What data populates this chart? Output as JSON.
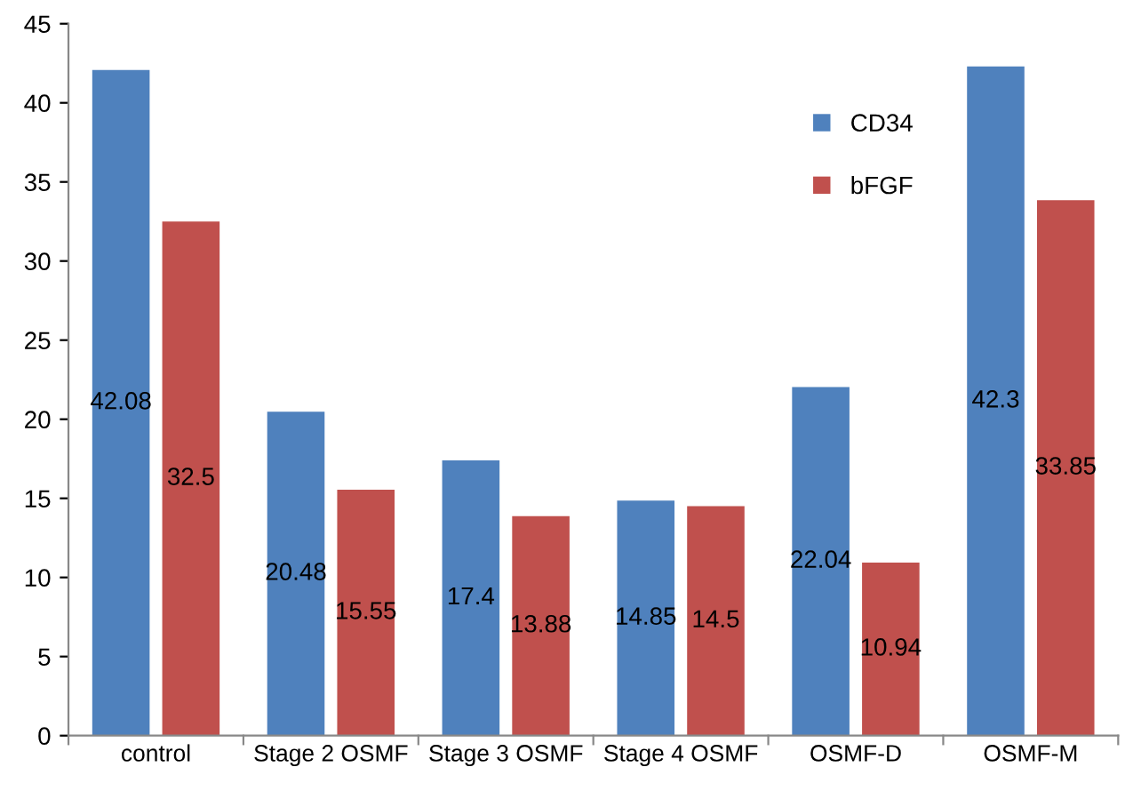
{
  "chart_data": {
    "type": "bar",
    "categories": [
      "control",
      "Stage 2 OSMF",
      "Stage 3 OSMF",
      "Stage 4 OSMF",
      "OSMF-D",
      "OSMF-M"
    ],
    "series": [
      {
        "name": "CD34",
        "color": "#4f81bd",
        "values": [
          42.08,
          20.48,
          17.4,
          14.85,
          22.04,
          42.3
        ]
      },
      {
        "name": "bFGF",
        "color": "#c0504d",
        "values": [
          32.5,
          15.55,
          13.88,
          14.5,
          10.94,
          33.85
        ]
      }
    ],
    "ylim": [
      0,
      45
    ],
    "yticks": [
      0,
      5,
      10,
      15,
      20,
      25,
      30,
      35,
      40,
      45
    ],
    "grid": false,
    "legend": "top right",
    "data_labels": true
  }
}
